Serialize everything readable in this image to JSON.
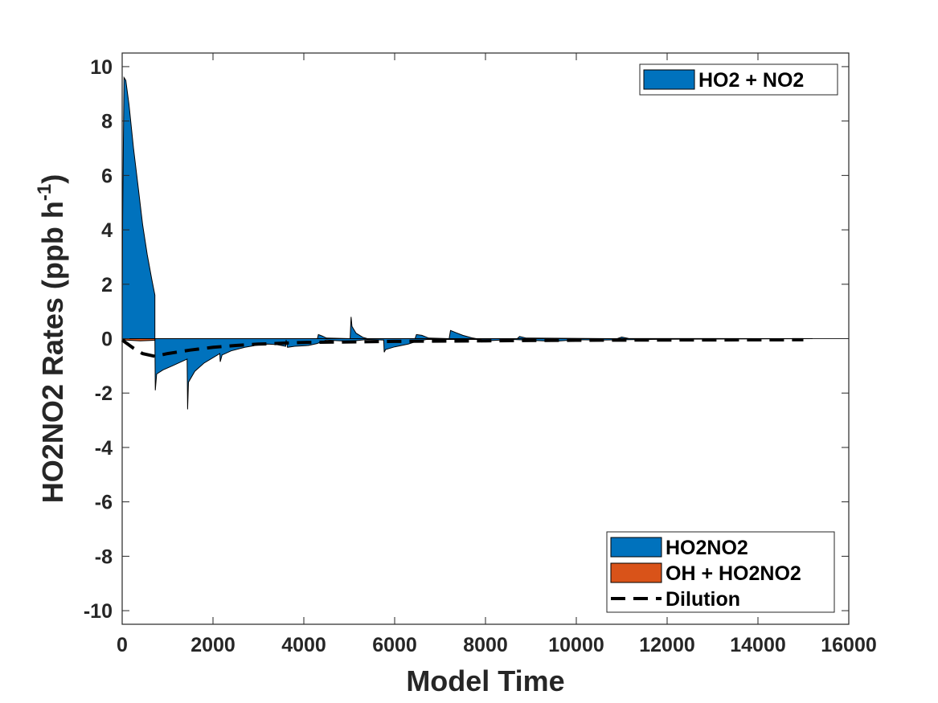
{
  "chart_data": {
    "type": "area",
    "xlabel": "Model Time",
    "ylabel": "HO2NO2 Rates (ppb h",
    "ylabel_sup": "-1",
    "ylabel_close": ")",
    "xlim": [
      0,
      16000
    ],
    "ylim": [
      -10.5,
      10.5
    ],
    "xticks": [
      0,
      2000,
      4000,
      6000,
      8000,
      10000,
      12000,
      14000,
      16000
    ],
    "yticks": [
      -10,
      -8,
      -6,
      -4,
      -2,
      0,
      2,
      4,
      6,
      8,
      10
    ],
    "grid": false,
    "legends": [
      {
        "placement": "top-right",
        "entries": [
          {
            "name": "HO2 + NO2",
            "color": "#0072BD",
            "style": "patch"
          }
        ]
      },
      {
        "placement": "bottom-right",
        "entries": [
          {
            "name": "HO2NO2",
            "color": "#0072BD",
            "style": "patch"
          },
          {
            "name": "OH + HO2NO2",
            "color": "#D95319",
            "style": "patch"
          },
          {
            "name": "Dilution",
            "color": "#000000",
            "style": "dash"
          }
        ]
      }
    ],
    "series": [
      {
        "name": "HO2 + NO2",
        "role": "positive-area",
        "color": "#0072BD",
        "points": [
          [
            0,
            0.8
          ],
          [
            10,
            4.5
          ],
          [
            40,
            9.6
          ],
          [
            80,
            9.5
          ],
          [
            150,
            8.6
          ],
          [
            250,
            7.0
          ],
          [
            350,
            5.6
          ],
          [
            450,
            4.2
          ],
          [
            550,
            3.1
          ],
          [
            650,
            2.2
          ],
          [
            720,
            1.6
          ],
          [
            720,
            0
          ],
          [
            4300,
            0
          ],
          [
            4320,
            0.15
          ],
          [
            4400,
            0.1
          ],
          [
            4500,
            0.02
          ],
          [
            5020,
            0
          ],
          [
            5040,
            0.8
          ],
          [
            5060,
            0.45
          ],
          [
            5150,
            0.2
          ],
          [
            5300,
            0.05
          ],
          [
            5400,
            0
          ],
          [
            6450,
            0
          ],
          [
            6480,
            0.15
          ],
          [
            6600,
            0.12
          ],
          [
            6750,
            0.02
          ],
          [
            7200,
            0
          ],
          [
            7230,
            0.3
          ],
          [
            7350,
            0.22
          ],
          [
            7500,
            0.12
          ],
          [
            7700,
            0.03
          ],
          [
            7800,
            0
          ],
          [
            8700,
            0
          ],
          [
            8750,
            0.08
          ],
          [
            8900,
            0.02
          ],
          [
            10900,
            0
          ],
          [
            11000,
            0.06
          ],
          [
            11150,
            0.01
          ],
          [
            15200,
            0
          ]
        ]
      },
      {
        "name": "HO2NO2",
        "role": "negative-area",
        "color": "#0072BD",
        "points": [
          [
            0,
            0
          ],
          [
            720,
            0
          ],
          [
            730,
            -1.9
          ],
          [
            760,
            -1.3
          ],
          [
            900,
            -1.15
          ],
          [
            1100,
            -1.0
          ],
          [
            1300,
            -0.85
          ],
          [
            1430,
            -0.75
          ],
          [
            1440,
            -2.6
          ],
          [
            1460,
            -1.6
          ],
          [
            1600,
            -1.2
          ],
          [
            1800,
            -0.9
          ],
          [
            2000,
            -0.7
          ],
          [
            2150,
            -0.55
          ],
          [
            2160,
            -0.85
          ],
          [
            2200,
            -0.6
          ],
          [
            2400,
            -0.45
          ],
          [
            2700,
            -0.32
          ],
          [
            2900,
            -0.26
          ],
          [
            2910,
            -0.22
          ],
          [
            3200,
            -0.2
          ],
          [
            3400,
            -0.22
          ],
          [
            3600,
            -0.28
          ],
          [
            3610,
            -0.05
          ],
          [
            3640,
            -0.32
          ],
          [
            3800,
            -0.28
          ],
          [
            4100,
            -0.25
          ],
          [
            4290,
            -0.18
          ],
          [
            4500,
            -0.05
          ],
          [
            5000,
            -0.1
          ],
          [
            5400,
            -0.03
          ],
          [
            5760,
            -0.05
          ],
          [
            5770,
            -0.5
          ],
          [
            5800,
            -0.4
          ],
          [
            6000,
            -0.3
          ],
          [
            6300,
            -0.2
          ],
          [
            6440,
            -0.12
          ],
          [
            6700,
            -0.03
          ],
          [
            7900,
            -0.03
          ],
          [
            7920,
            -0.12
          ],
          [
            8000,
            -0.08
          ],
          [
            8600,
            -0.03
          ],
          [
            9500,
            -0.1
          ],
          [
            10000,
            -0.04
          ],
          [
            10600,
            -0.05
          ],
          [
            12000,
            -0.02
          ],
          [
            15200,
            0
          ]
        ]
      },
      {
        "name": "OH + HO2NO2",
        "role": "negative-area",
        "color": "#D95319",
        "points": [
          [
            0,
            0
          ],
          [
            80,
            -0.05
          ],
          [
            400,
            -0.08
          ],
          [
            720,
            -0.06
          ],
          [
            720,
            0
          ]
        ]
      },
      {
        "name": "Dilution",
        "role": "line",
        "color": "#000000",
        "points": [
          [
            0,
            -0.05
          ],
          [
            250,
            -0.35
          ],
          [
            450,
            -0.55
          ],
          [
            720,
            -0.65
          ],
          [
            1000,
            -0.55
          ],
          [
            1500,
            -0.42
          ],
          [
            2000,
            -0.32
          ],
          [
            2500,
            -0.25
          ],
          [
            3000,
            -0.2
          ],
          [
            3500,
            -0.17
          ],
          [
            4000,
            -0.14
          ],
          [
            5000,
            -0.12
          ],
          [
            6000,
            -0.1
          ],
          [
            8000,
            -0.08
          ],
          [
            10000,
            -0.06
          ],
          [
            12000,
            -0.05
          ],
          [
            15000,
            -0.04
          ]
        ]
      }
    ]
  }
}
